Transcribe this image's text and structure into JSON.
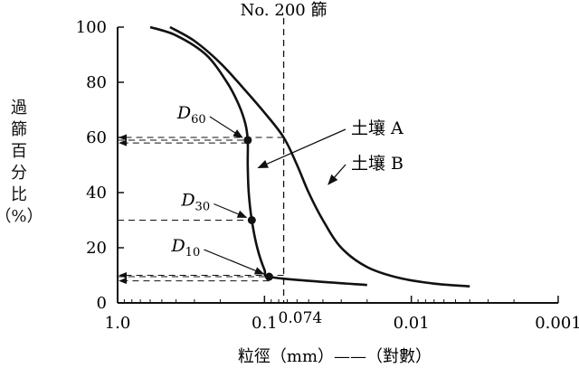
{
  "chart_data": {
    "type": "line",
    "x_scale": "log",
    "x_reversed": true,
    "xlim": [
      1.0,
      0.001
    ],
    "ylim": [
      0,
      100
    ],
    "x_ticks": [
      {
        "value": 1.0,
        "label": "1.0"
      },
      {
        "value": 0.1,
        "label": "0.1"
      },
      {
        "value": 0.01,
        "label": "0.01"
      },
      {
        "value": 0.001,
        "label": "0.001"
      }
    ],
    "y_ticks": [
      0,
      20,
      40,
      60,
      80,
      100
    ],
    "ylabel_chars": [
      "過",
      "篩",
      "百",
      "分",
      "比",
      "（%）"
    ],
    "xlabel": "粒徑（mm）——（對數）",
    "sieve_line": {
      "x": 0.074,
      "top_label": "No. 200 篩",
      "value_label": "0.074"
    },
    "series": [
      {
        "name": "土壤 A",
        "points": [
          [
            0.6,
            100
          ],
          [
            0.4,
            97
          ],
          [
            0.25,
            90
          ],
          [
            0.18,
            80
          ],
          [
            0.15,
            72
          ],
          [
            0.135,
            65
          ],
          [
            0.13,
            59
          ],
          [
            0.13,
            50
          ],
          [
            0.128,
            40
          ],
          [
            0.122,
            30
          ],
          [
            0.112,
            20
          ],
          [
            0.1,
            12
          ],
          [
            0.093,
            9.5
          ],
          [
            0.05,
            8
          ],
          [
            0.02,
            6.5
          ]
        ]
      },
      {
        "name": "土壤 B",
        "points": [
          [
            0.44,
            100
          ],
          [
            0.3,
            95
          ],
          [
            0.2,
            87
          ],
          [
            0.14,
            78
          ],
          [
            0.1,
            69
          ],
          [
            0.074,
            60
          ],
          [
            0.06,
            50
          ],
          [
            0.05,
            40
          ],
          [
            0.04,
            30
          ],
          [
            0.03,
            20
          ],
          [
            0.02,
            13
          ],
          [
            0.012,
            9
          ],
          [
            0.007,
            7
          ],
          [
            0.004,
            6
          ]
        ]
      }
    ],
    "markers": [
      {
        "label": "D",
        "sub": "60",
        "x": 0.13,
        "y": 59
      },
      {
        "label": "D",
        "sub": "30",
        "x": 0.122,
        "y": 30
      },
      {
        "label": "D",
        "sub": "10",
        "x": 0.093,
        "y": 9.5
      }
    ],
    "guide_lines_y": [
      59,
      30,
      9.5
    ],
    "arrows_to_axis_y": [
      60,
      58,
      10,
      8
    ],
    "series_labels": [
      {
        "text": "土壤 A",
        "target": [
          0.12,
          49
        ]
      },
      {
        "text": "土壤 B",
        "target": [
          0.04,
          43
        ]
      }
    ]
  }
}
